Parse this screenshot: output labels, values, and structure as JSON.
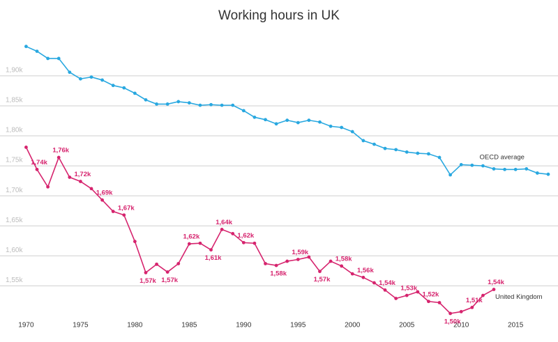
{
  "chart_data": {
    "type": "line",
    "title": "Working hours in UK",
    "xlim": [
      1967.6,
      2018.9
    ],
    "xticks": [
      1970,
      1975,
      1980,
      1985,
      1990,
      1995,
      2000,
      2005,
      2010,
      2015
    ],
    "ylim": [
      1504,
      1980
    ],
    "yticks": [
      {
        "value": 1550,
        "label": "1,55k"
      },
      {
        "value": 1600,
        "label": "1,60k"
      },
      {
        "value": 1650,
        "label": "1,65k"
      },
      {
        "value": 1700,
        "label": "1,70k"
      },
      {
        "value": 1750,
        "label": "1,75k"
      },
      {
        "value": 1800,
        "label": "1,80k"
      },
      {
        "value": 1850,
        "label": "1,85k"
      },
      {
        "value": 1900,
        "label": "1,90k"
      }
    ],
    "grid": true,
    "series": [
      {
        "name": "OECD average",
        "color": "#29a8e0",
        "x": [
          1970,
          1971,
          1972,
          1973,
          1974,
          1975,
          1976,
          1977,
          1978,
          1979,
          1980,
          1981,
          1982,
          1983,
          1984,
          1985,
          1986,
          1987,
          1988,
          1989,
          1990,
          1991,
          1992,
          1993,
          1994,
          1995,
          1996,
          1997,
          1998,
          1999,
          2000,
          2001,
          2002,
          2003,
          2004,
          2005,
          2006,
          2007,
          2008,
          2009,
          2010,
          2011,
          2012,
          2013,
          2014,
          2015,
          2016,
          2017,
          2018
        ],
        "values": [
          1949,
          1941,
          1929,
          1929,
          1906,
          1895,
          1898,
          1893,
          1884,
          1880,
          1871,
          1860,
          1853,
          1853,
          1857,
          1855,
          1851,
          1852,
          1851,
          1851,
          1842,
          1831,
          1827,
          1820,
          1826,
          1822,
          1826,
          1823,
          1816,
          1814,
          1807,
          1792,
          1786,
          1779,
          1777,
          1773,
          1771,
          1770,
          1764,
          1735,
          1752,
          1751,
          1750,
          1745,
          1744,
          1744,
          1745,
          1738,
          1736
        ]
      },
      {
        "name": "United Kingdom",
        "color": "#d6246e",
        "x": [
          1970,
          1971,
          1972,
          1973,
          1974,
          1975,
          1976,
          1977,
          1978,
          1979,
          1980,
          1981,
          1982,
          1983,
          1984,
          1985,
          1986,
          1987,
          1988,
          1989,
          1990,
          1991,
          1992,
          1993,
          1994,
          1995,
          1996,
          1997,
          1998,
          1999,
          2000,
          2001,
          2002,
          2003,
          2004,
          2005,
          2006,
          2007,
          2008,
          2009,
          2010,
          2011,
          2012,
          2013
        ],
        "values": [
          1781,
          1744,
          1715,
          1764,
          1731,
          1724,
          1712,
          1693,
          1674,
          1668,
          1624,
          1572,
          1586,
          1573,
          1587,
          1620,
          1621,
          1610,
          1644,
          1637,
          1622,
          1621,
          1587,
          1584,
          1591,
          1594,
          1598,
          1574,
          1591,
          1583,
          1570,
          1564,
          1555,
          1543,
          1529,
          1534,
          1540,
          1524,
          1522,
          1504,
          1507,
          1514,
          1534,
          1544
        ],
        "value_labels": [
          null,
          "1,74k",
          null,
          "1,76k",
          null,
          "1,72k",
          null,
          "1,69k",
          null,
          "1,67k",
          null,
          "1,57k",
          null,
          "1,57k",
          null,
          "1,62k",
          null,
          "1,61k",
          "1,64k",
          null,
          "1,62k",
          null,
          null,
          "1,58k",
          null,
          "1,59k",
          null,
          "1,57k",
          null,
          "1,58k",
          null,
          "1,56k",
          null,
          "1,54k",
          null,
          "1,53k",
          null,
          "1,52k",
          null,
          "1,50k",
          null,
          "1,51k",
          null,
          "1,54k"
        ]
      }
    ]
  }
}
